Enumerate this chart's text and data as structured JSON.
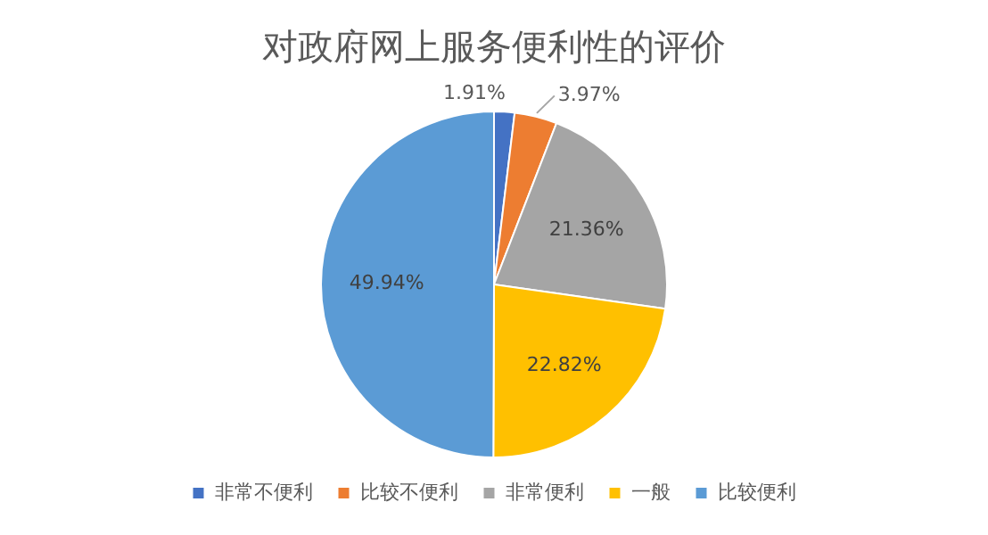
{
  "chart_data": {
    "type": "pie",
    "title": "对政府网上服务便利性的评价",
    "categories": [
      "非常不便利",
      "比较不便利",
      "非常便利",
      "一般",
      "比较便利"
    ],
    "values": [
      1.91,
      3.97,
      21.36,
      22.82,
      49.94
    ],
    "value_labels": [
      "1.91%",
      "3.97%",
      "21.36%",
      "22.82%",
      "49.94%"
    ],
    "colors": [
      "#4472c4",
      "#ed7d31",
      "#a5a5a5",
      "#ffc000",
      "#5b9bd5"
    ],
    "legend": "bottom"
  }
}
